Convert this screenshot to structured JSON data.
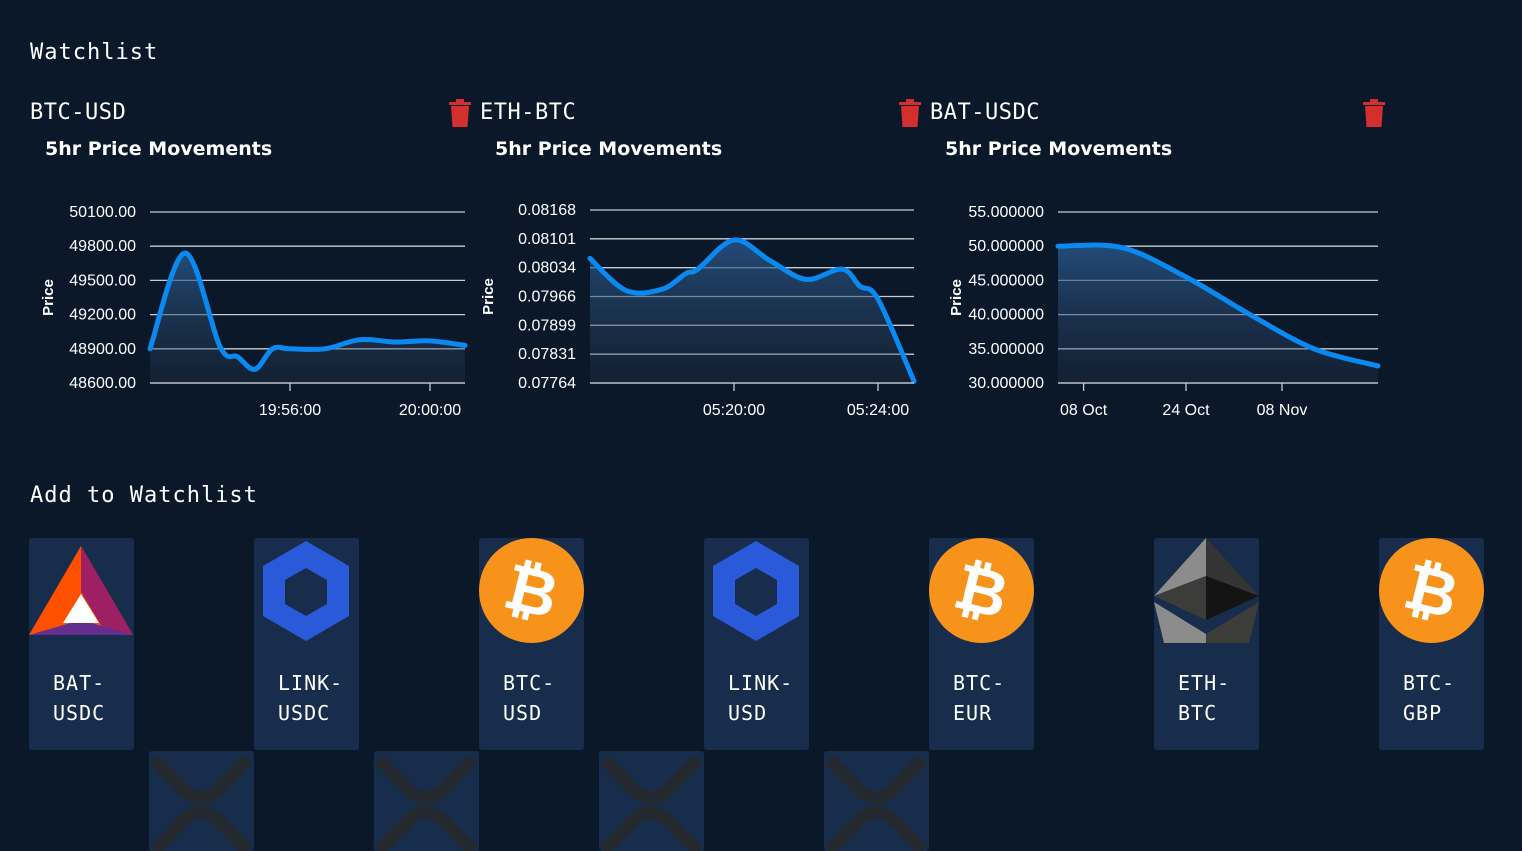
{
  "watchlist": {
    "heading": "Watchlist",
    "items": [
      {
        "pair": "BTC-USD",
        "chart_title": "5hr Price Movements",
        "chart_data": {
          "type": "area",
          "title": "5hr Price Movements",
          "ylabel": "Price",
          "yticks": [
            "50100.00",
            "49800.00",
            "49500.00",
            "49200.00",
            "48900.00",
            "48600.00"
          ],
          "ylim": [
            48600,
            50100
          ],
          "xticks": [
            "19:56:00",
            "20:00:00"
          ],
          "x": [
            "19:52:00",
            "19:53:00",
            "19:54:00",
            "19:54:30",
            "19:55:00",
            "19:55:30",
            "19:56:00",
            "19:57:00",
            "19:58:00",
            "19:59:00",
            "20:00:00",
            "20:01:00"
          ],
          "y": [
            48900,
            49740,
            48920,
            48830,
            48720,
            48900,
            48900,
            48900,
            48980,
            48960,
            48970,
            48930
          ],
          "line_color": "#0a8af0"
        }
      },
      {
        "pair": "ETH-BTC",
        "chart_title": "5hr Price Movements",
        "chart_data": {
          "type": "area",
          "title": "5hr Price Movements",
          "ylabel": "Price",
          "yticks": [
            "0.08168",
            "0.08101",
            "0.08034",
            "0.07966",
            "0.07899",
            "0.07831",
            "0.07764"
          ],
          "ylim": [
            0.07764,
            0.08168
          ],
          "xticks": [
            "05:20:00",
            "05:24:00"
          ],
          "x": [
            "05:16:00",
            "05:17:00",
            "05:18:00",
            "05:18:40",
            "05:19:00",
            "05:20:00",
            "05:21:00",
            "05:22:00",
            "05:23:00",
            "05:23:30",
            "05:24:00",
            "05:25:00"
          ],
          "y": [
            0.08055,
            0.0798,
            0.07983,
            0.0802,
            0.0803,
            0.08098,
            0.0805,
            0.08006,
            0.0803,
            0.0799,
            0.0796,
            0.07768
          ],
          "line_color": "#0a8af0"
        }
      },
      {
        "pair": "BAT-USDC",
        "chart_title": "5hr Price Movements",
        "chart_data": {
          "type": "area",
          "title": "5hr Price Movements",
          "ylabel": "Price",
          "yticks": [
            "55.000000",
            "50.000000",
            "45.000000",
            "40.000000",
            "35.000000",
            "30.000000"
          ],
          "ylim": [
            30,
            55
          ],
          "xticks": [
            "08 Oct",
            "24 Oct",
            "08 Nov"
          ],
          "x": [
            "2021-10-04",
            "2021-10-14",
            "2021-10-24",
            "2021-11-03",
            "2021-11-13",
            "2021-11-23"
          ],
          "y": [
            50,
            49.8,
            45.5,
            40,
            35,
            32.5
          ],
          "line_color": "#0a8af0"
        }
      }
    ]
  },
  "add": {
    "heading": "Add to Watchlist",
    "cards": [
      {
        "symbol_top": "BAT-",
        "symbol_bottom": "USDC",
        "icon": "bat-icon"
      },
      {
        "symbol_top": "LINK-",
        "symbol_bottom": "USDC",
        "icon": "chainlink-icon"
      },
      {
        "symbol_top": "BTC-",
        "symbol_bottom": "USD",
        "icon": "bitcoin-icon"
      },
      {
        "symbol_top": "LINK-",
        "symbol_bottom": "USD",
        "icon": "chainlink-icon"
      },
      {
        "symbol_top": "BTC-",
        "symbol_bottom": "EUR",
        "icon": "bitcoin-icon"
      },
      {
        "symbol_top": "ETH-",
        "symbol_bottom": "BTC",
        "icon": "ethereum-icon"
      },
      {
        "symbol_top": "BTC-",
        "symbol_bottom": "GBP",
        "icon": "bitcoin-icon"
      }
    ],
    "partial_cards": [
      {
        "icon": "xrp-icon"
      },
      {
        "icon": "xrp-icon"
      },
      {
        "icon": "xrp-icon"
      },
      {
        "icon": "xrp-icon"
      }
    ]
  },
  "colors": {
    "background": "#0b1829",
    "card": "#172d4b",
    "line": "#0a8af0",
    "trash": "#d32f2f",
    "bitcoin": "#f7931a",
    "chainlink": "#2a5ada"
  }
}
